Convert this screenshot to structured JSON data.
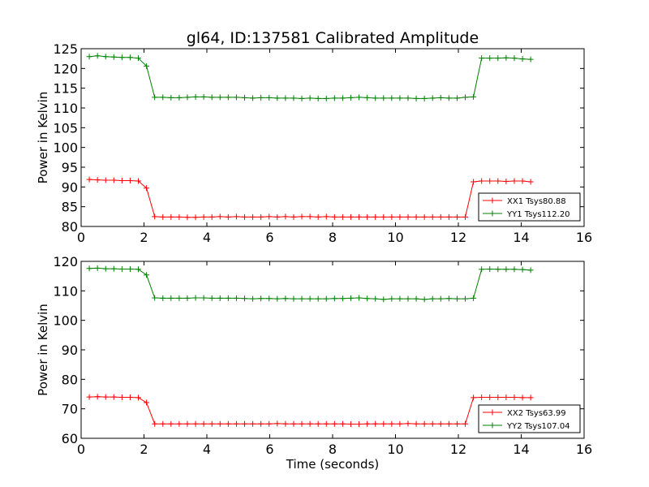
{
  "chart_data": [
    {
      "type": "line",
      "title": "gl64, ID:137581 Calibrated Amplitude",
      "xlabel": "",
      "ylabel": "Power in Kelvin",
      "xlim": [
        0,
        16
      ],
      "ylim": [
        80,
        125
      ],
      "xticks": [
        "0",
        "2",
        "4",
        "6",
        "8",
        "10",
        "12",
        "14",
        "16"
      ],
      "yticks": [
        "80",
        "85",
        "90",
        "95",
        "100",
        "105",
        "110",
        "115",
        "120",
        "125"
      ],
      "grid": false,
      "legend_position": "lower-right",
      "x": [
        0.26,
        0.52,
        0.78,
        1.04,
        1.3,
        1.56,
        1.82,
        2.08,
        2.34,
        2.6,
        2.86,
        3.12,
        3.38,
        3.64,
        3.9,
        4.16,
        4.42,
        4.68,
        4.94,
        5.2,
        5.46,
        5.72,
        5.98,
        6.24,
        6.5,
        6.76,
        7.02,
        7.28,
        7.54,
        7.8,
        8.06,
        8.32,
        8.58,
        8.84,
        9.1,
        9.36,
        9.62,
        9.88,
        10.14,
        10.4,
        10.66,
        10.92,
        11.18,
        11.44,
        11.7,
        11.96,
        12.22,
        12.48,
        12.74,
        13.0,
        13.26,
        13.52,
        13.78,
        14.04,
        14.3
      ],
      "series": [
        {
          "name": "XX1 Tsys80.88",
          "color": "#ff0000",
          "values": [
            91.9,
            91.8,
            91.7,
            91.7,
            91.6,
            91.6,
            91.5,
            89.7,
            82.5,
            82.4,
            82.4,
            82.4,
            82.3,
            82.3,
            82.4,
            82.4,
            82.5,
            82.4,
            82.5,
            82.4,
            82.4,
            82.4,
            82.5,
            82.4,
            82.5,
            82.4,
            82.5,
            82.5,
            82.4,
            82.5,
            82.4,
            82.4,
            82.4,
            82.4,
            82.4,
            82.4,
            82.4,
            82.4,
            82.4,
            82.4,
            82.4,
            82.4,
            82.4,
            82.4,
            82.4,
            82.4,
            82.4,
            91.3,
            91.5,
            91.5,
            91.5,
            91.4,
            91.5,
            91.5,
            91.3
          ]
        },
        {
          "name": "YY1 Tsys112.20",
          "color": "#008000",
          "values": [
            123.0,
            123.2,
            123.0,
            122.9,
            122.8,
            122.8,
            122.6,
            120.6,
            112.7,
            112.7,
            112.6,
            112.6,
            112.7,
            112.8,
            112.8,
            112.7,
            112.7,
            112.7,
            112.7,
            112.6,
            112.5,
            112.6,
            112.6,
            112.5,
            112.5,
            112.5,
            112.4,
            112.5,
            112.4,
            112.4,
            112.5,
            112.5,
            112.6,
            112.7,
            112.6,
            112.5,
            112.5,
            112.5,
            112.5,
            112.5,
            112.4,
            112.4,
            112.5,
            112.6,
            112.5,
            112.5,
            112.7,
            112.8,
            122.6,
            122.6,
            122.6,
            122.7,
            122.6,
            122.4,
            122.3
          ]
        }
      ]
    },
    {
      "type": "line",
      "title": "",
      "xlabel": "Time (seconds)",
      "ylabel": "Power in Kelvin",
      "xlim": [
        0,
        16
      ],
      "ylim": [
        60,
        120
      ],
      "xticks": [
        "0",
        "2",
        "4",
        "6",
        "8",
        "10",
        "12",
        "14",
        "16"
      ],
      "yticks": [
        "60",
        "70",
        "80",
        "90",
        "100",
        "110",
        "120"
      ],
      "grid": false,
      "legend_position": "lower-right",
      "x": [
        0.26,
        0.52,
        0.78,
        1.04,
        1.3,
        1.56,
        1.82,
        2.08,
        2.34,
        2.6,
        2.86,
        3.12,
        3.38,
        3.64,
        3.9,
        4.16,
        4.42,
        4.68,
        4.94,
        5.2,
        5.46,
        5.72,
        5.98,
        6.24,
        6.5,
        6.76,
        7.02,
        7.28,
        7.54,
        7.8,
        8.06,
        8.32,
        8.58,
        8.84,
        9.1,
        9.36,
        9.62,
        9.88,
        10.14,
        10.4,
        10.66,
        10.92,
        11.18,
        11.44,
        11.7,
        11.96,
        12.22,
        12.48,
        12.74,
        13.0,
        13.26,
        13.52,
        13.78,
        14.04,
        14.3
      ],
      "series": [
        {
          "name": "XX2 Tsys63.99",
          "color": "#ff0000",
          "values": [
            74.0,
            74.1,
            74.0,
            74.0,
            73.9,
            73.9,
            73.8,
            72.1,
            64.9,
            64.9,
            64.9,
            64.9,
            64.9,
            64.9,
            64.9,
            64.9,
            64.9,
            64.9,
            64.9,
            64.9,
            64.9,
            64.9,
            64.9,
            65.0,
            64.9,
            64.9,
            64.9,
            64.9,
            64.9,
            64.9,
            64.9,
            64.9,
            64.8,
            64.8,
            64.9,
            64.9,
            64.9,
            64.9,
            64.9,
            65.0,
            64.9,
            64.9,
            64.9,
            64.9,
            64.9,
            64.9,
            64.9,
            73.8,
            73.9,
            73.9,
            73.9,
            73.9,
            73.9,
            73.8,
            73.8
          ]
        },
        {
          "name": "YY2 Tsys107.04",
          "color": "#008000",
          "values": [
            117.6,
            117.7,
            117.5,
            117.5,
            117.4,
            117.4,
            117.3,
            115.4,
            107.6,
            107.5,
            107.5,
            107.5,
            107.5,
            107.6,
            107.6,
            107.5,
            107.5,
            107.5,
            107.5,
            107.4,
            107.3,
            107.4,
            107.4,
            107.3,
            107.4,
            107.3,
            107.3,
            107.3,
            107.3,
            107.3,
            107.4,
            107.4,
            107.5,
            107.6,
            107.4,
            107.3,
            107.1,
            107.3,
            107.3,
            107.3,
            107.3,
            107.1,
            107.3,
            107.3,
            107.4,
            107.3,
            107.3,
            107.5,
            117.3,
            117.4,
            117.3,
            117.3,
            117.3,
            117.2,
            117.0
          ]
        }
      ]
    }
  ]
}
